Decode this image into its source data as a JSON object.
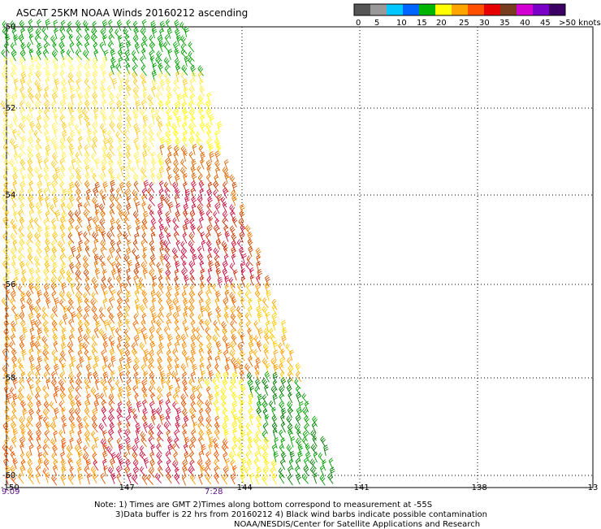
{
  "title": "ASCAT 25KM NOAA Winds 20160212 ascending",
  "scale": {
    "labels": [
      "0",
      "5",
      "10",
      "15",
      "20",
      "25",
      "30",
      "35",
      "40",
      "45",
      ">50 knots"
    ],
    "colors": [
      "#555555",
      "#999999",
      "#00c8ff",
      "#0064ff",
      "#00b400",
      "#ffff00",
      "#ffa500",
      "#ff5000",
      "#e60000",
      "#783c1e",
      "#d200d2",
      "#7a00c8",
      "#3c0064"
    ]
  },
  "axes": {
    "lat_labels": [
      "-50",
      "-52",
      "-54",
      "-56",
      "-58",
      "-60"
    ],
    "lon_labels": [
      "-150",
      "-147",
      "-144",
      "-141",
      "-138",
      "-13"
    ]
  },
  "time_labels": [
    "9:09",
    "7:28"
  ],
  "notes": [
    "Note: 1) Times are GMT 2)Times along bottom correspond to measurement at -55S",
    "3)Data buffer is 22 hrs from 20160212 4) Black wind barbs indicate possible contamination",
    "NOAA/NESDIS/Center for Satellite Applications and Research"
  ]
}
